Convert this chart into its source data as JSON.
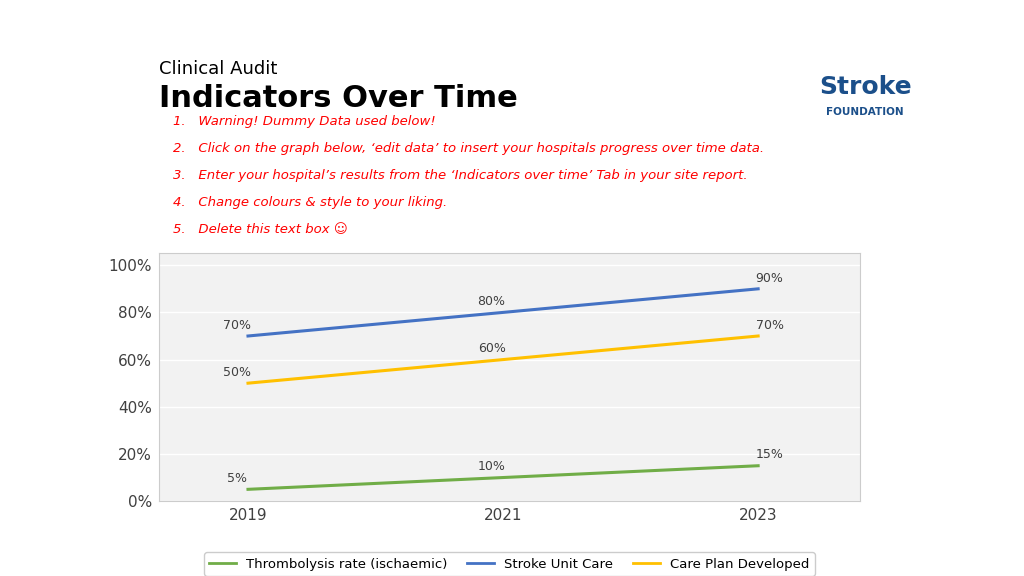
{
  "title_small": "Clinical Audit",
  "title_large": "Indicators Over Time",
  "warning_lines": [
    "1.   Warning! Dummy Data used below!",
    "2.   Click on the graph below, ‘edit data’ to insert your hospitals progress over time data.",
    "3.   Enter your hospital’s results from the ‘Indicators over time’ Tab in your site report.",
    "4.   Change colours & style to your liking.",
    "5.   Delete this text box ☺"
  ],
  "years": [
    2019,
    2021,
    2023
  ],
  "series": [
    {
      "label": "Thrombolysis rate (ischaemic)",
      "values": [
        0.05,
        0.1,
        0.15
      ],
      "color": "#70AD47",
      "data_labels": [
        "5%",
        "10%",
        "15%"
      ]
    },
    {
      "label": "Stroke Unit Care",
      "values": [
        0.7,
        0.8,
        0.9
      ],
      "color": "#4472C4",
      "data_labels": [
        "70%",
        "80%",
        "90%"
      ]
    },
    {
      "label": "Care Plan Developed",
      "values": [
        0.5,
        0.6,
        0.7
      ],
      "color": "#FFC000",
      "data_labels": [
        "50%",
        "60%",
        "70%"
      ]
    }
  ],
  "ylim": [
    0,
    1.05
  ],
  "yticks": [
    0,
    0.2,
    0.4,
    0.6,
    0.8,
    1.0
  ],
  "ytick_labels": [
    "0%",
    "20%",
    "40%",
    "60%",
    "80%",
    "100%"
  ],
  "xlim": [
    2018.3,
    2023.8
  ],
  "xticks": [
    2019,
    2021,
    2023
  ],
  "background_color": "#FFFFFF",
  "plot_bg_color": "#F2F2F2",
  "grid_color": "#FFFFFF",
  "warning_bg_color": "#F2F2F2",
  "warning_text_color": "#FF0000",
  "title_color": "#000000",
  "logo_color": "#1B4F8A"
}
